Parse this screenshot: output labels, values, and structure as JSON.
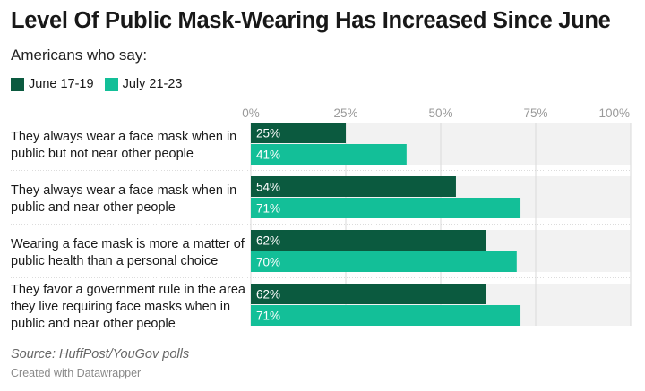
{
  "title": "Level Of Public Mask-Wearing Has Increased Since June",
  "subtitle": "Americans who say:",
  "source": "Source: HuffPost/YouGov polls",
  "credit": "Created with Datawrapper",
  "colors": {
    "june": "#0b5a3f",
    "july": "#13bf98",
    "band": "#f2f2f2",
    "grid": "#d9d9d9"
  },
  "chart_data": {
    "type": "bar",
    "orientation": "horizontal",
    "categories": [
      [
        "They always wear a face mask when in",
        "public but not near other people"
      ],
      [
        "They always wear a face mask when in",
        "public and near other people"
      ],
      [
        "Wearing a face mask is more a matter of",
        "public health than a personal choice"
      ],
      [
        "They favor a government rule in the area",
        "they live requiring face masks when in",
        "public and near other people"
      ]
    ],
    "series": [
      {
        "name": "June 17-19",
        "values": [
          25,
          54,
          62,
          62
        ],
        "labels": [
          "25%",
          "54%",
          "62%",
          "62%"
        ]
      },
      {
        "name": "July 21-23",
        "values": [
          41,
          71,
          70,
          71
        ],
        "labels": [
          "41%",
          "71%",
          "70%",
          "71%"
        ]
      }
    ],
    "xlim": [
      0,
      100
    ],
    "ticks": [
      0,
      25,
      50,
      75,
      100
    ],
    "tick_labels": [
      "0%",
      "25%",
      "50%",
      "75%",
      "100%"
    ],
    "grid": true,
    "legend_position": "top-left"
  }
}
